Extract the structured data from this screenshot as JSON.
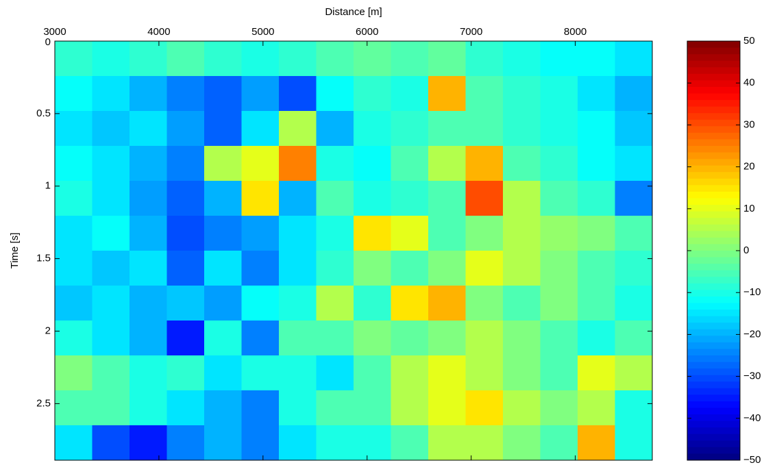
{
  "chart_data": {
    "type": "heatmap",
    "x_label": "Distance [m]",
    "y_label": "Time [s]",
    "xlim": [
      3000,
      8740
    ],
    "xticks": [
      3000,
      4000,
      5000,
      6000,
      7000,
      8000
    ],
    "ylim": [
      0,
      2.89
    ],
    "yticks": [
      0,
      0.5,
      1,
      1.5,
      2,
      2.5
    ],
    "y_reversed": true,
    "x_axis_position": "top",
    "colormap": "jet",
    "clim": [
      -50,
      50
    ],
    "cticks": [
      {
        "value": -50,
        "label": "−50"
      },
      {
        "value": -40,
        "label": "−40"
      },
      {
        "value": -30,
        "label": "−30"
      },
      {
        "value": -20,
        "label": "−20"
      },
      {
        "value": -10,
        "label": "−10"
      },
      0,
      10,
      20,
      30,
      40,
      50
    ],
    "z": [
      [
        -8,
        -10,
        -8,
        -5,
        -8,
        -10,
        -8,
        -5,
        -3,
        -5,
        -3,
        -8,
        -10,
        -12,
        -12,
        -15
      ],
      [
        -12,
        -15,
        -20,
        -25,
        -28,
        -22,
        -30,
        -12,
        -8,
        -10,
        20,
        -5,
        -8,
        -10,
        -15,
        -20
      ],
      [
        -15,
        -18,
        -15,
        -22,
        -28,
        -15,
        5,
        -20,
        -10,
        -8,
        -5,
        -5,
        -8,
        -10,
        -12,
        -18
      ],
      [
        -12,
        -15,
        -20,
        -25,
        5,
        10,
        25,
        -10,
        -12,
        -5,
        5,
        20,
        -5,
        -8,
        -12,
        -15
      ],
      [
        -10,
        -15,
        -22,
        -28,
        -20,
        15,
        -20,
        -5,
        -10,
        -8,
        -5,
        30,
        5,
        -5,
        -8,
        -25
      ],
      [
        -15,
        -12,
        -20,
        -30,
        -25,
        -22,
        -15,
        -10,
        15,
        10,
        -5,
        0,
        5,
        2,
        0,
        -5
      ],
      [
        -15,
        -18,
        -15,
        -28,
        -15,
        -25,
        -15,
        -8,
        0,
        -5,
        0,
        10,
        5,
        0,
        -5,
        -8
      ],
      [
        -18,
        -15,
        -20,
        -18,
        -22,
        -12,
        -10,
        5,
        -8,
        15,
        20,
        0,
        -5,
        0,
        -5,
        -10
      ],
      [
        -10,
        -15,
        -20,
        -35,
        -10,
        -25,
        -5,
        -5,
        0,
        -3,
        0,
        5,
        0,
        -5,
        -10,
        -5
      ],
      [
        0,
        -5,
        -10,
        -8,
        -15,
        -10,
        -10,
        -15,
        -5,
        5,
        10,
        5,
        0,
        -5,
        10,
        5
      ],
      [
        -5,
        -5,
        -10,
        -15,
        -20,
        -25,
        -10,
        -5,
        -5,
        5,
        10,
        15,
        5,
        0,
        5,
        -10
      ],
      [
        -15,
        -30,
        -35,
        -25,
        -20,
        -25,
        -15,
        -10,
        -10,
        -5,
        5,
        5,
        0,
        -5,
        20,
        -10
      ]
    ]
  }
}
